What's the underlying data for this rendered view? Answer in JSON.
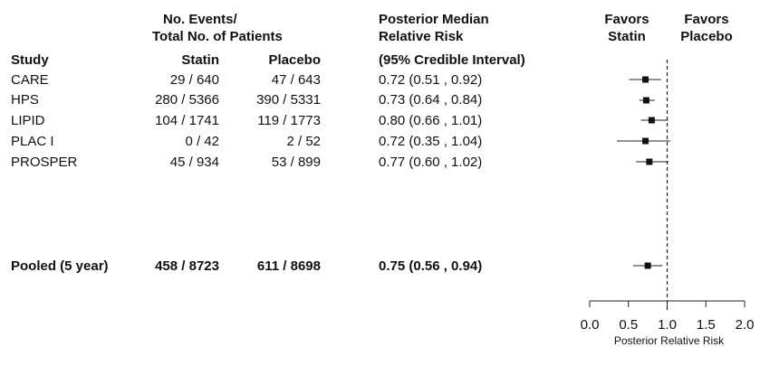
{
  "headers": {
    "events_line1": "No. Events/",
    "events_line2": "Total No. of Patients",
    "study": "Study",
    "statin": "Statin",
    "placebo": "Placebo",
    "rr_line1": "Posterior Median",
    "rr_line2": "Relative Risk",
    "rr_line3": "(95% Credible Interval)",
    "favors_statin_1": "Favors",
    "favors_statin_2": "Statin",
    "favors_placebo_1": "Favors",
    "favors_placebo_2": "Placebo"
  },
  "rows": [
    {
      "study": "CARE",
      "statin": "29 / 640",
      "placebo": "47 / 643",
      "ci_text": "0.72 (0.51 , 0.92)"
    },
    {
      "study": "HPS",
      "statin": "280 / 5366",
      "placebo": "390 / 5331",
      "ci_text": "0.73 (0.64 , 0.84)"
    },
    {
      "study": "LIPID",
      "statin": "104 / 1741",
      "placebo": "119 / 1773",
      "ci_text": "0.80 (0.66 , 1.01)"
    },
    {
      "study": "PLAC I",
      "statin": "0 / 42",
      "placebo": "2 / 52",
      "ci_text": "0.72 (0.35 , 1.04)"
    },
    {
      "study": "PROSPER",
      "statin": "45 / 934",
      "placebo": "53 / 899",
      "ci_text": "0.77 (0.60 , 1.02)"
    }
  ],
  "pooled": {
    "study": "Pooled (5 year)",
    "statin": "458 / 8723",
    "placebo": "611 / 8698",
    "ci_text": "0.75 (0.56 , 0.94)"
  },
  "chart_data": {
    "type": "forest",
    "xlabel": "Posterior Relative Risk",
    "xlim": [
      0.0,
      2.0
    ],
    "xticks": [
      0.0,
      0.5,
      1.0,
      1.5,
      2.0
    ],
    "xtick_labels": [
      "0.0",
      "0.5",
      "1.0",
      "1.5",
      "2.0"
    ],
    "reference_line": 1.0,
    "points": [
      {
        "label": "CARE",
        "median": 0.72,
        "lower": 0.51,
        "upper": 0.92
      },
      {
        "label": "HPS",
        "median": 0.73,
        "lower": 0.64,
        "upper": 0.84
      },
      {
        "label": "LIPID",
        "median": 0.8,
        "lower": 0.66,
        "upper": 1.01
      },
      {
        "label": "PLAC I",
        "median": 0.72,
        "lower": 0.35,
        "upper": 1.04
      },
      {
        "label": "PROSPER",
        "median": 0.77,
        "lower": 0.6,
        "upper": 1.02
      },
      {
        "label": "Pooled (5 year)",
        "median": 0.75,
        "lower": 0.56,
        "upper": 0.94
      }
    ]
  }
}
